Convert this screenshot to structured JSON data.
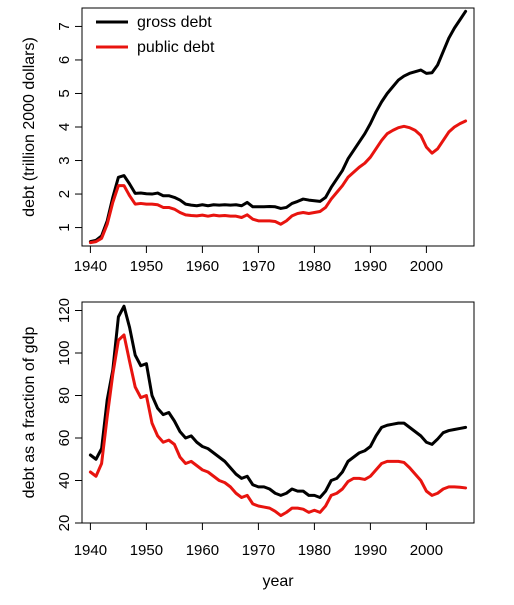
{
  "chart_data": [
    {
      "type": "line",
      "xlabel": "",
      "ylabel": "debt (trillion 2000 dollars)",
      "xlim": [
        1938.5,
        2008.5
      ],
      "ylim": [
        0.45,
        7.55
      ],
      "xticks": [
        1940,
        1950,
        1960,
        1970,
        1980,
        1990,
        2000
      ],
      "yticks": [
        1,
        2,
        3,
        4,
        5,
        6,
        7
      ],
      "legend": {
        "placement": "top-left"
      },
      "series": [
        {
          "name": "gross debt",
          "color": "#000000",
          "x": [
            1940,
            1941,
            1942,
            1943,
            1944,
            1945,
            1946,
            1947,
            1948,
            1949,
            1950,
            1951,
            1952,
            1953,
            1954,
            1955,
            1956,
            1957,
            1958,
            1959,
            1960,
            1961,
            1962,
            1963,
            1964,
            1965,
            1966,
            1967,
            1968,
            1969,
            1970,
            1971,
            1972,
            1973,
            1974,
            1975,
            1976,
            1977,
            1978,
            1979,
            1980,
            1981,
            1982,
            1983,
            1984,
            1985,
            1986,
            1987,
            1988,
            1989,
            1990,
            1991,
            1992,
            1993,
            1994,
            1995,
            1996,
            1997,
            1998,
            1999,
            2000,
            2001,
            2002,
            2003,
            2004,
            2005,
            2006,
            2007
          ],
          "y": [
            0.58,
            0.62,
            0.75,
            1.2,
            1.9,
            2.5,
            2.55,
            2.3,
            2.02,
            2.03,
            2.01,
            2.0,
            2.03,
            1.95,
            1.95,
            1.9,
            1.82,
            1.7,
            1.67,
            1.65,
            1.68,
            1.65,
            1.68,
            1.67,
            1.68,
            1.67,
            1.68,
            1.65,
            1.75,
            1.62,
            1.62,
            1.62,
            1.63,
            1.62,
            1.57,
            1.6,
            1.72,
            1.78,
            1.85,
            1.82,
            1.8,
            1.78,
            1.9,
            2.2,
            2.45,
            2.7,
            3.05,
            3.3,
            3.55,
            3.8,
            4.1,
            4.45,
            4.75,
            5.0,
            5.2,
            5.4,
            5.52,
            5.6,
            5.65,
            5.7,
            5.6,
            5.62,
            5.85,
            6.25,
            6.65,
            6.95,
            7.2,
            7.45
          ]
        },
        {
          "name": "public debt",
          "color": "#e8140f",
          "x": [
            1940,
            1941,
            1942,
            1943,
            1944,
            1945,
            1946,
            1947,
            1948,
            1949,
            1950,
            1951,
            1952,
            1953,
            1954,
            1955,
            1956,
            1957,
            1958,
            1959,
            1960,
            1961,
            1962,
            1963,
            1964,
            1965,
            1966,
            1967,
            1968,
            1969,
            1970,
            1971,
            1972,
            1973,
            1974,
            1975,
            1976,
            1977,
            1978,
            1979,
            1980,
            1981,
            1982,
            1983,
            1984,
            1985,
            1986,
            1987,
            1988,
            1989,
            1990,
            1991,
            1992,
            1993,
            1994,
            1995,
            1996,
            1997,
            1998,
            1999,
            2000,
            2001,
            2002,
            2003,
            2004,
            2005,
            2006,
            2007
          ],
          "y": [
            0.55,
            0.58,
            0.68,
            1.1,
            1.75,
            2.25,
            2.25,
            1.95,
            1.7,
            1.72,
            1.7,
            1.7,
            1.68,
            1.6,
            1.6,
            1.55,
            1.45,
            1.38,
            1.36,
            1.35,
            1.37,
            1.34,
            1.37,
            1.35,
            1.36,
            1.34,
            1.34,
            1.3,
            1.38,
            1.25,
            1.2,
            1.2,
            1.2,
            1.18,
            1.1,
            1.2,
            1.35,
            1.42,
            1.45,
            1.42,
            1.45,
            1.48,
            1.6,
            1.85,
            2.05,
            2.25,
            2.5,
            2.65,
            2.8,
            2.92,
            3.1,
            3.35,
            3.6,
            3.8,
            3.9,
            3.98,
            4.02,
            3.98,
            3.9,
            3.75,
            3.4,
            3.22,
            3.35,
            3.6,
            3.85,
            4.0,
            4.1,
            4.18
          ]
        }
      ]
    },
    {
      "type": "line",
      "xlabel": "year",
      "ylabel": "debt as a fraction of gdp",
      "xlim": [
        1938.5,
        2008.5
      ],
      "ylim": [
        20,
        124
      ],
      "xticks": [
        1940,
        1950,
        1960,
        1970,
        1980,
        1990,
        2000
      ],
      "yticks": [
        20,
        40,
        60,
        80,
        100,
        120
      ],
      "series": [
        {
          "name": "gross debt",
          "color": "#000000",
          "x": [
            1940,
            1941,
            1942,
            1943,
            1944,
            1945,
            1946,
            1947,
            1948,
            1949,
            1950,
            1951,
            1952,
            1953,
            1954,
            1955,
            1956,
            1957,
            1958,
            1959,
            1960,
            1961,
            1962,
            1963,
            1964,
            1965,
            1966,
            1967,
            1968,
            1969,
            1970,
            1971,
            1972,
            1973,
            1974,
            1975,
            1976,
            1977,
            1978,
            1979,
            1980,
            1981,
            1982,
            1983,
            1984,
            1985,
            1986,
            1987,
            1988,
            1989,
            1990,
            1991,
            1992,
            1993,
            1994,
            1995,
            1996,
            1997,
            1998,
            1999,
            2000,
            2001,
            2002,
            2003,
            2004,
            2005,
            2006,
            2007
          ],
          "y": [
            52,
            50,
            55,
            78,
            92,
            117,
            122,
            112,
            99,
            94,
            95,
            80,
            74,
            71,
            72,
            68,
            63,
            60,
            61,
            58,
            56,
            55,
            53,
            51,
            49,
            46,
            43,
            41,
            42,
            38,
            37,
            37,
            36,
            34,
            33,
            34,
            36,
            35,
            35,
            33,
            33,
            32,
            35,
            40,
            41,
            44,
            49,
            51,
            53,
            54,
            56,
            61,
            65,
            66,
            66.5,
            67,
            67,
            65,
            63,
            61,
            58,
            57,
            59.5,
            62.5,
            63.5,
            64,
            64.5,
            65
          ]
        },
        {
          "name": "public debt",
          "color": "#e8140f",
          "x": [
            1940,
            1941,
            1942,
            1943,
            1944,
            1945,
            1946,
            1947,
            1948,
            1949,
            1950,
            1951,
            1952,
            1953,
            1954,
            1955,
            1956,
            1957,
            1958,
            1959,
            1960,
            1961,
            1962,
            1963,
            1964,
            1965,
            1966,
            1967,
            1968,
            1969,
            1970,
            1971,
            1972,
            1973,
            1974,
            1975,
            1976,
            1977,
            1978,
            1979,
            1980,
            1981,
            1982,
            1983,
            1984,
            1985,
            1986,
            1987,
            1988,
            1989,
            1990,
            1991,
            1992,
            1993,
            1994,
            1995,
            1996,
            1997,
            1998,
            1999,
            2000,
            2001,
            2002,
            2003,
            2004,
            2005,
            2006,
            2007
          ],
          "y": [
            44,
            42,
            48,
            70,
            90,
            106,
            108.5,
            96,
            84,
            79,
            80,
            67,
            61,
            58,
            59,
            57,
            51,
            48,
            49,
            47,
            45,
            44,
            42,
            40,
            39,
            37,
            34,
            32,
            33,
            29,
            28,
            27.5,
            27,
            25.5,
            23.5,
            25,
            27,
            27,
            26.5,
            25,
            26,
            25,
            28,
            33,
            34,
            36,
            39.5,
            41,
            41,
            40.5,
            42,
            45,
            48,
            49,
            49,
            49,
            48.5,
            46,
            43,
            40,
            35,
            33,
            34,
            36,
            37,
            37,
            36.8,
            36.5
          ]
        }
      ]
    }
  ]
}
